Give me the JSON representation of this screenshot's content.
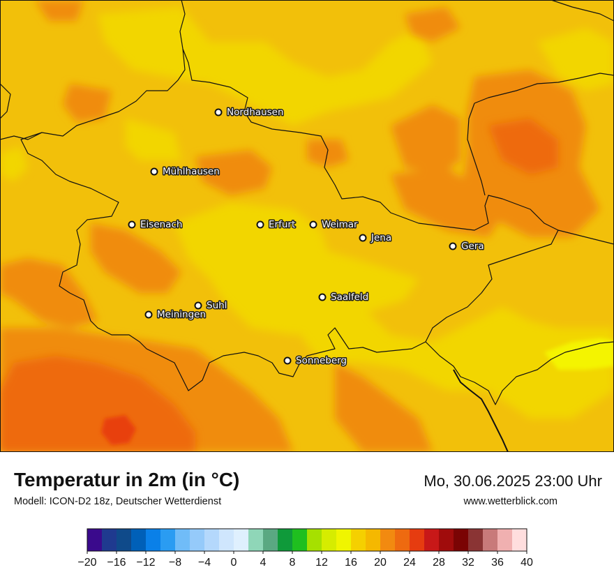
{
  "title": "Temperatur in 2m (in °C)",
  "subtitle": "Modell: ICON-D2 18z, Deutscher Wetterdienst",
  "datetime": "Mo, 30.06.2025 23:00 Uhr",
  "website": "www.wetterblick.com",
  "cities": [
    {
      "name": "Nordhausen"
    },
    {
      "name": "Mühlhausen"
    },
    {
      "name": "Eisenach"
    },
    {
      "name": "Erfurt"
    },
    {
      "name": "Weimar"
    },
    {
      "name": "Jena"
    },
    {
      "name": "Gera"
    },
    {
      "name": "Suhl"
    },
    {
      "name": "Meiningen"
    },
    {
      "name": "Saalfeld"
    },
    {
      "name": "Sonneberg"
    }
  ],
  "legend": {
    "min": -20,
    "max": 40,
    "ticks": [
      "−20",
      "−16",
      "−12",
      "−8",
      "−4",
      "0",
      "4",
      "8",
      "12",
      "16",
      "20",
      "24",
      "28",
      "32",
      "36",
      "40"
    ],
    "colors": [
      "#3a0a8c",
      "#1f3a8f",
      "#0f4a8a",
      "#0060b8",
      "#0a80e8",
      "#2a9cf2",
      "#70bcf8",
      "#95cafa",
      "#b4d8fc",
      "#cfe6fd",
      "#dff0fe",
      "#8fd6b8",
      "#5aa882",
      "#0f9a3a",
      "#1fbf1f",
      "#a6e000",
      "#d6ec00",
      "#f0f500",
      "#f5d000",
      "#f5b800",
      "#f28a10",
      "#ee6a10",
      "#e63c10",
      "#c81818",
      "#a00c0c",
      "#7a0404",
      "#8a3434",
      "#c87a7a",
      "#f0b0b0",
      "#ffdede"
    ]
  },
  "map_colors": {
    "warm_yellow": "#f2c00a",
    "bright_yellow": "#f2d600",
    "lime_yellow": "#f4f400",
    "orange": "#f08c10",
    "deep_orange": "#ee6a10",
    "red_orange": "#e84010"
  }
}
